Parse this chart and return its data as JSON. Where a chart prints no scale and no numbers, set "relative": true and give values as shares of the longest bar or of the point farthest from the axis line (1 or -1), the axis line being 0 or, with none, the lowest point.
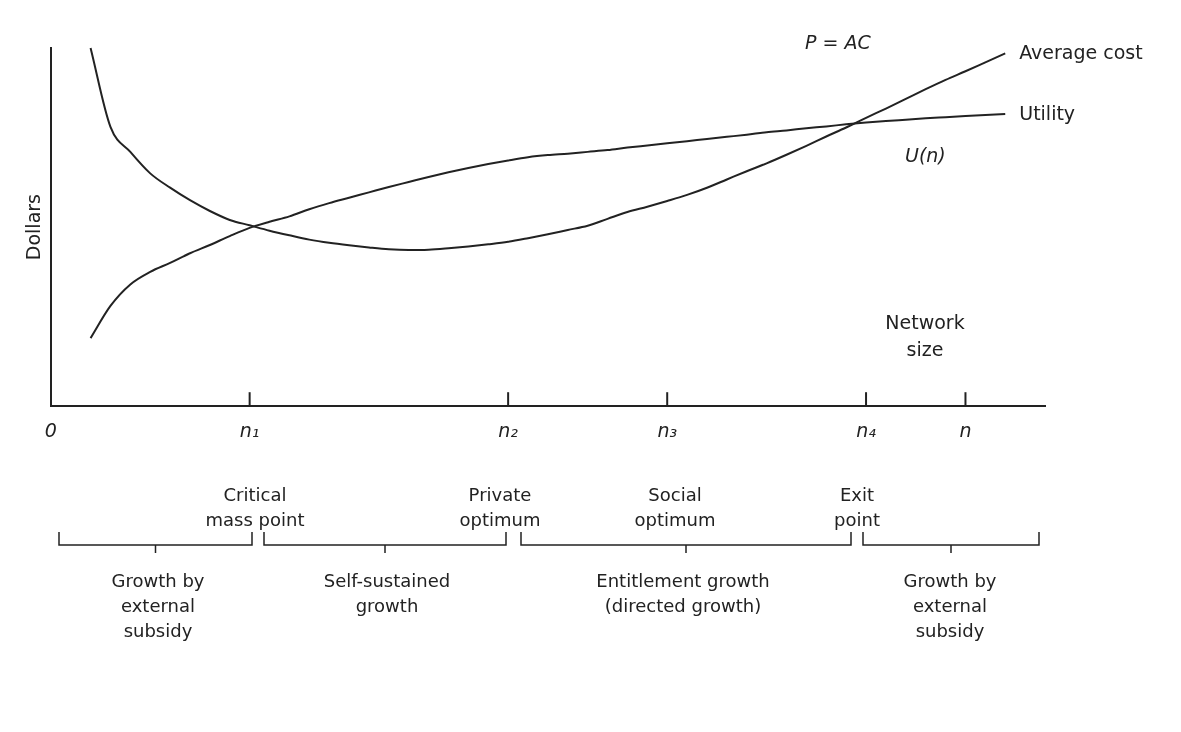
{
  "chart_data": {
    "type": "line",
    "relative": true,
    "ylabel": "Dollars",
    "xlabel": "Network size",
    "categories": [
      "0",
      null,
      null,
      null,
      null,
      null,
      null,
      null,
      null,
      null,
      "n₁",
      null,
      null,
      null,
      null,
      null,
      null,
      null,
      null,
      null,
      null,
      null,
      null,
      "n₂",
      null,
      null,
      null,
      null,
      null,
      null,
      null,
      "n₃",
      null,
      null,
      null,
      null,
      null,
      null,
      null,
      null,
      null,
      "n₄",
      null,
      null,
      null,
      null,
      "n",
      null,
      null,
      null,
      null
    ],
    "grid": false,
    "legend": false,
    "marker": "none",
    "line_style": "solid",
    "series": [
      {
        "name": "Average cost",
        "color": "#222222",
        "values": [
          null,
          null,
          1.0,
          0.78,
          0.71,
          0.65,
          0.61,
          0.575,
          0.545,
          0.52,
          0.505,
          0.49,
          0.477,
          0.465,
          0.456,
          0.449,
          0.443,
          0.438,
          0.436,
          0.437,
          0.441,
          0.446,
          0.452,
          0.459,
          0.469,
          0.48,
          0.492,
          0.504,
          0.523,
          0.542,
          0.557,
          0.573,
          0.59,
          0.61,
          0.633,
          0.656,
          0.678,
          0.702,
          0.727,
          0.753,
          0.778,
          0.805,
          0.831,
          0.858,
          0.885,
          0.911,
          0.935,
          0.96,
          0.985,
          null,
          null
        ]
      },
      {
        "name": "Utility",
        "color": "#222222",
        "values": [
          null,
          null,
          0.19,
          0.28,
          0.34,
          0.375,
          0.4,
          0.427,
          0.45,
          0.475,
          0.498,
          0.515,
          0.53,
          0.55,
          0.567,
          0.582,
          0.597,
          0.612,
          0.626,
          0.64,
          0.653,
          0.665,
          0.676,
          0.686,
          0.695,
          0.701,
          0.705,
          0.71,
          0.715,
          0.722,
          0.728,
          0.734,
          0.74,
          0.746,
          0.752,
          0.758,
          0.765,
          0.77,
          0.776,
          0.781,
          0.787,
          0.792,
          0.796,
          0.8,
          0.804,
          0.807,
          0.81,
          0.813,
          0.816,
          null,
          null
        ]
      }
    ],
    "annotations": [
      "P = AC",
      "U(n)",
      "Critical mass point",
      "Private optimum",
      "Social optimum",
      "Exit point",
      "Growth by external subsidy",
      "Self-sustained growth",
      "Entitlement growth (directed growth)",
      "Growth by external subsidy"
    ]
  }
}
